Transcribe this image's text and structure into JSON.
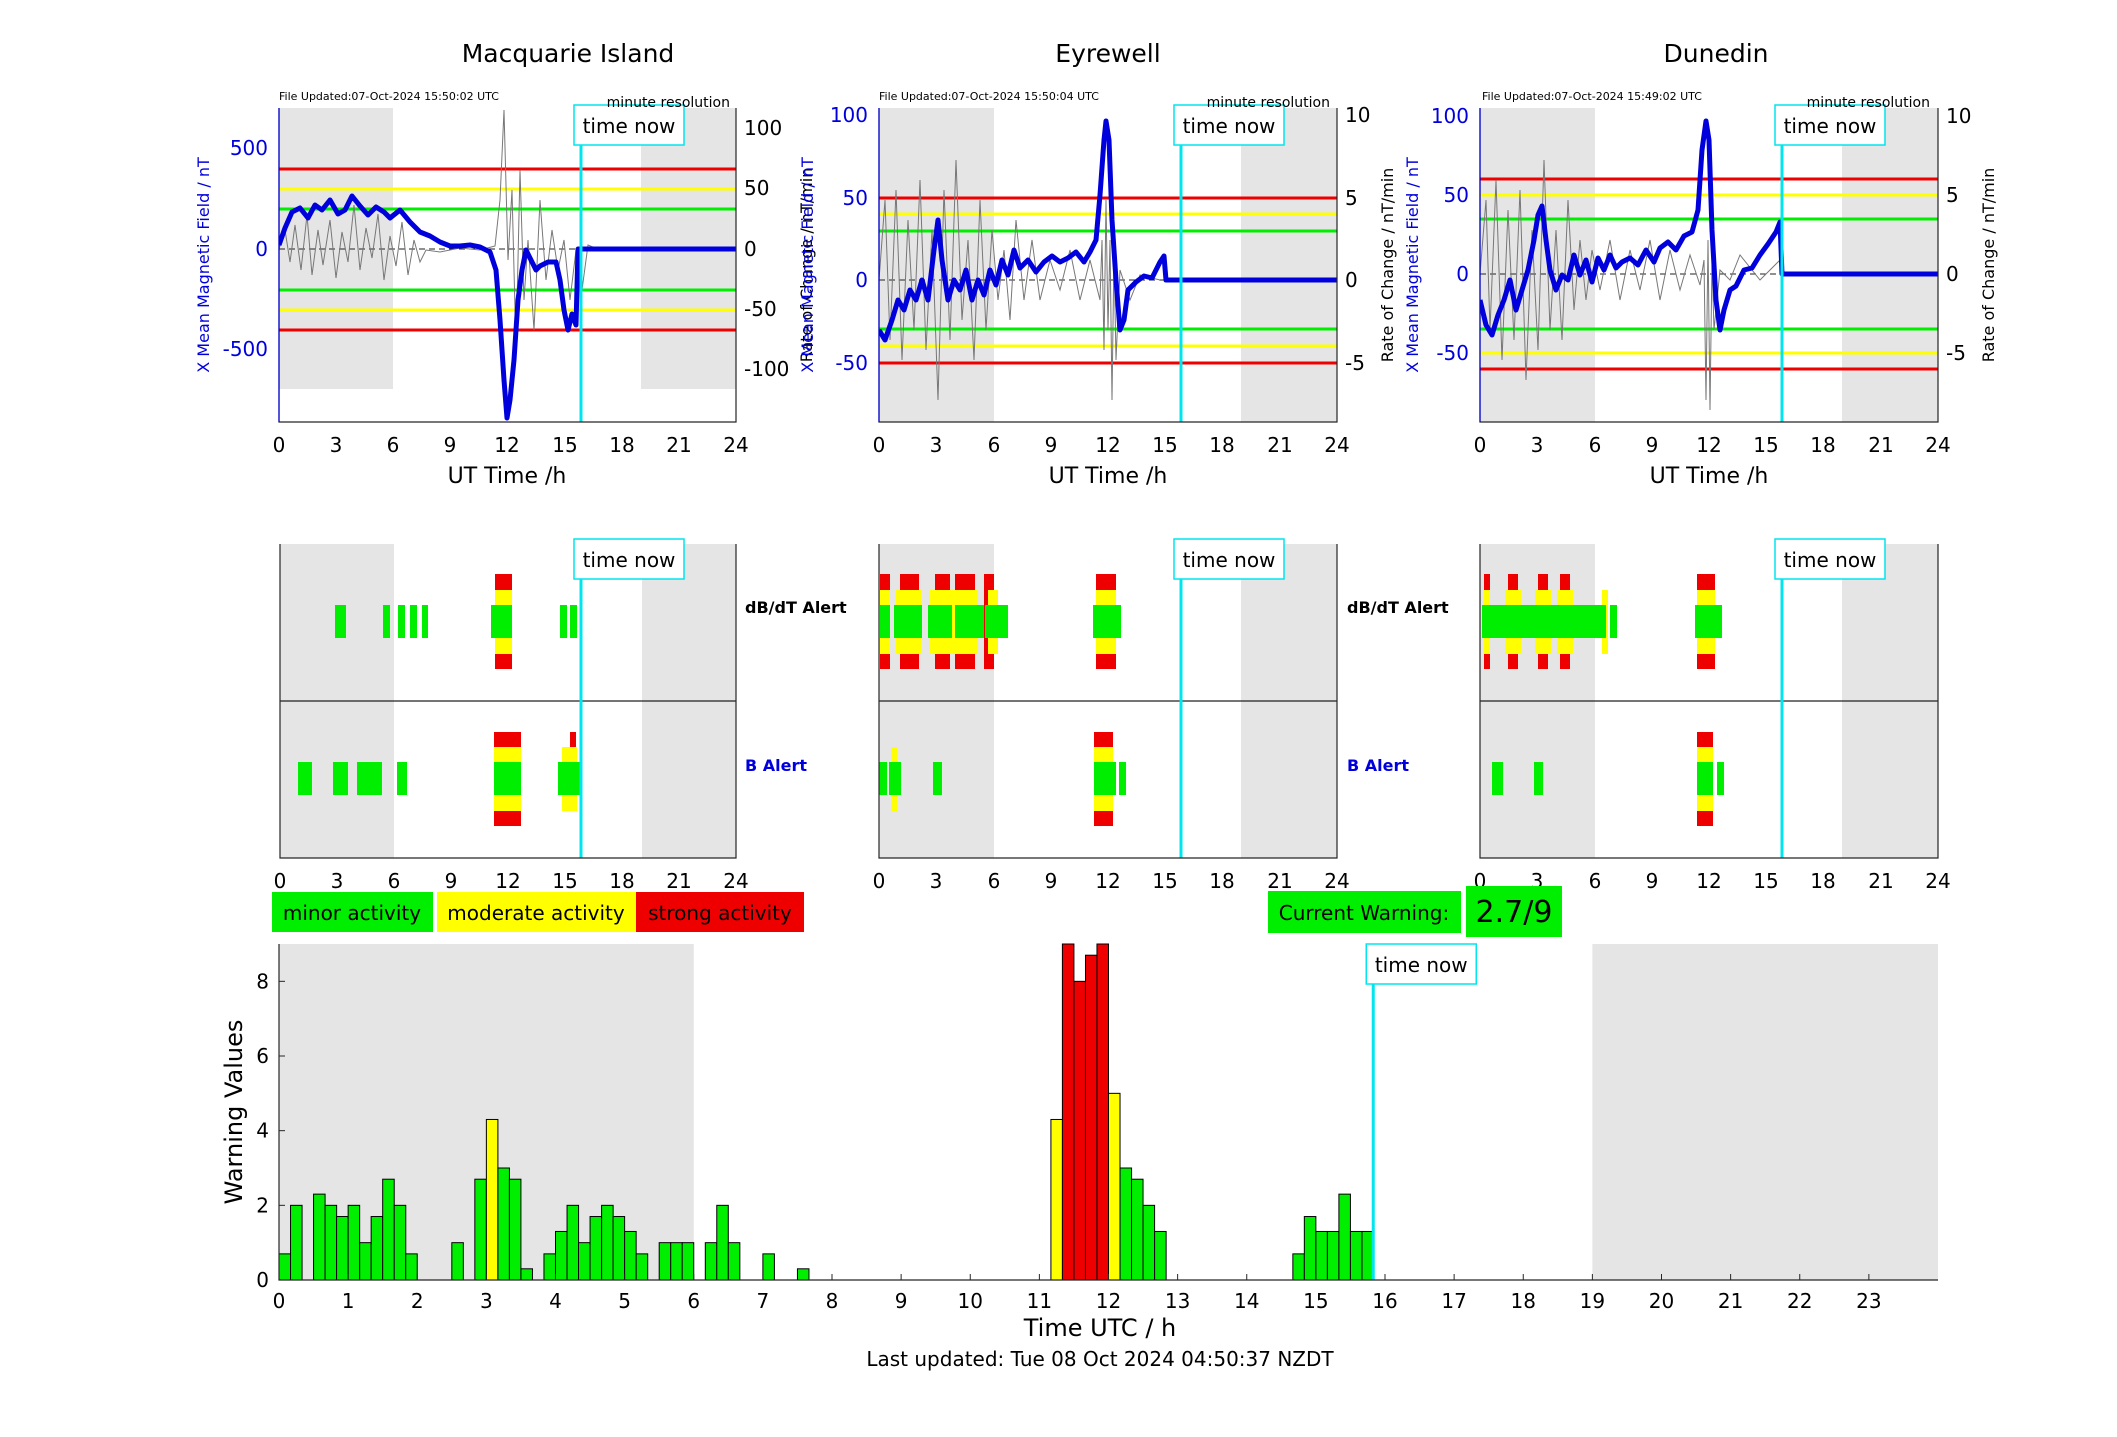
{
  "page": {
    "footer_text": "Last updated: Tue 08 Oct 2024 04:50:37 NZDT",
    "time_now_label": "time now",
    "time_now_h": 15.83
  },
  "stations": [
    {
      "name": "Macquarie Island",
      "file_updated": "File Updated:07-Oct-2024 15:50:02 UTC",
      "resolution": "minute resolution",
      "ylabel_left": "X Mean Magnetic Field / nT",
      "ylabel_right": "Rate of Change / nT/min",
      "left_ticks": [
        "500",
        "0",
        "-500"
      ],
      "right_ticks": [
        "100",
        "50",
        "0",
        "-50",
        "-100"
      ]
    },
    {
      "name": "Eyrewell",
      "file_updated": "File Updated:07-Oct-2024 15:50:04 UTC",
      "resolution": "minute resolution",
      "ylabel_left": "X Mean Magnetic Field / nT",
      "ylabel_right": "Rate of Change / nT/min",
      "left_ticks": [
        "100",
        "50",
        "0",
        "-50"
      ],
      "right_ticks": [
        "10",
        "5",
        "0",
        "-5"
      ]
    },
    {
      "name": "Dunedin",
      "file_updated": "File Updated:07-Oct-2024 15:49:02 UTC",
      "resolution": "minute resolution",
      "ylabel_left": "X Mean Magnetic Field / nT",
      "ylabel_right": "Rate of Change / nT/min",
      "left_ticks": [
        "100",
        "50",
        "0",
        "-50"
      ],
      "right_ticks": [
        "10",
        "5",
        "0",
        "-5"
      ]
    }
  ],
  "top_xlabel": "UT Time /h",
  "x_ticks_24": [
    "0",
    "3",
    "6",
    "9",
    "12",
    "15",
    "18",
    "21",
    "24"
  ],
  "alerts": {
    "dbdt_label": "dB/dT Alert",
    "b_label": "B Alert"
  },
  "legend": {
    "minor": "minor activity",
    "moderate": "moderate activity",
    "strong": "strong activity"
  },
  "current_warning": {
    "label": "Current Warning:",
    "value": "2.7/9"
  },
  "colors": {
    "minor": "#00ee00",
    "moderate": "#ffff00",
    "strong": "#ee0000",
    "mean_field": "#0000dd",
    "time_now": "#00e5ee",
    "night_shade": "#e5e5e5"
  },
  "chart_data": {
    "type": "bar",
    "xlabel": "Time UTC / h",
    "ylabel": "Warning Values",
    "ylim": [
      0,
      9
    ],
    "xlim": [
      0,
      24
    ],
    "y_ticks": [
      "0",
      "2",
      "4",
      "6",
      "8"
    ],
    "x_ticks": [
      "0",
      "1",
      "2",
      "3",
      "4",
      "5",
      "6",
      "7",
      "8",
      "9",
      "10",
      "11",
      "12",
      "13",
      "14",
      "15",
      "16",
      "17",
      "18",
      "19",
      "20",
      "21",
      "22",
      "23"
    ],
    "bin_width_h": 0.1667,
    "night_shading": [
      [
        0,
        6
      ],
      [
        19,
        24
      ]
    ],
    "bars": [
      {
        "x": 0.0,
        "v": 0.7,
        "c": "minor"
      },
      {
        "x": 0.167,
        "v": 2.0,
        "c": "minor"
      },
      {
        "x": 0.5,
        "v": 2.3,
        "c": "minor"
      },
      {
        "x": 0.667,
        "v": 2.0,
        "c": "minor"
      },
      {
        "x": 0.833,
        "v": 1.7,
        "c": "minor"
      },
      {
        "x": 1.0,
        "v": 2.0,
        "c": "minor"
      },
      {
        "x": 1.167,
        "v": 1.0,
        "c": "minor"
      },
      {
        "x": 1.333,
        "v": 1.7,
        "c": "minor"
      },
      {
        "x": 1.5,
        "v": 2.7,
        "c": "minor"
      },
      {
        "x": 1.667,
        "v": 2.0,
        "c": "minor"
      },
      {
        "x": 1.833,
        "v": 0.7,
        "c": "minor"
      },
      {
        "x": 2.5,
        "v": 1.0,
        "c": "minor"
      },
      {
        "x": 2.833,
        "v": 2.7,
        "c": "minor"
      },
      {
        "x": 3.0,
        "v": 4.3,
        "c": "moderate"
      },
      {
        "x": 3.167,
        "v": 3.0,
        "c": "minor"
      },
      {
        "x": 3.333,
        "v": 2.7,
        "c": "minor"
      },
      {
        "x": 3.5,
        "v": 0.3,
        "c": "minor"
      },
      {
        "x": 3.833,
        "v": 0.7,
        "c": "minor"
      },
      {
        "x": 4.0,
        "v": 1.3,
        "c": "minor"
      },
      {
        "x": 4.167,
        "v": 2.0,
        "c": "minor"
      },
      {
        "x": 4.333,
        "v": 1.0,
        "c": "minor"
      },
      {
        "x": 4.5,
        "v": 1.7,
        "c": "minor"
      },
      {
        "x": 4.667,
        "v": 2.0,
        "c": "minor"
      },
      {
        "x": 4.833,
        "v": 1.7,
        "c": "minor"
      },
      {
        "x": 5.0,
        "v": 1.3,
        "c": "minor"
      },
      {
        "x": 5.167,
        "v": 0.7,
        "c": "minor"
      },
      {
        "x": 5.5,
        "v": 1.0,
        "c": "minor"
      },
      {
        "x": 5.667,
        "v": 1.0,
        "c": "minor"
      },
      {
        "x": 5.833,
        "v": 1.0,
        "c": "minor"
      },
      {
        "x": 6.167,
        "v": 1.0,
        "c": "minor"
      },
      {
        "x": 6.333,
        "v": 2.0,
        "c": "minor"
      },
      {
        "x": 6.5,
        "v": 1.0,
        "c": "minor"
      },
      {
        "x": 7.0,
        "v": 0.7,
        "c": "minor"
      },
      {
        "x": 7.5,
        "v": 0.3,
        "c": "minor"
      },
      {
        "x": 11.167,
        "v": 4.3,
        "c": "moderate"
      },
      {
        "x": 11.333,
        "v": 9.0,
        "c": "strong"
      },
      {
        "x": 11.5,
        "v": 8.0,
        "c": "strong"
      },
      {
        "x": 11.667,
        "v": 8.7,
        "c": "strong"
      },
      {
        "x": 11.833,
        "v": 9.0,
        "c": "strong"
      },
      {
        "x": 12.0,
        "v": 5.0,
        "c": "moderate"
      },
      {
        "x": 12.167,
        "v": 3.0,
        "c": "minor"
      },
      {
        "x": 12.333,
        "v": 2.7,
        "c": "minor"
      },
      {
        "x": 12.5,
        "v": 2.0,
        "c": "minor"
      },
      {
        "x": 12.667,
        "v": 1.3,
        "c": "minor"
      },
      {
        "x": 14.667,
        "v": 0.7,
        "c": "minor"
      },
      {
        "x": 14.833,
        "v": 1.7,
        "c": "minor"
      },
      {
        "x": 15.0,
        "v": 1.3,
        "c": "minor"
      },
      {
        "x": 15.167,
        "v": 1.3,
        "c": "minor"
      },
      {
        "x": 15.333,
        "v": 2.3,
        "c": "minor"
      },
      {
        "x": 15.5,
        "v": 1.3,
        "c": "minor"
      },
      {
        "x": 15.667,
        "v": 1.3,
        "c": "minor"
      }
    ]
  }
}
